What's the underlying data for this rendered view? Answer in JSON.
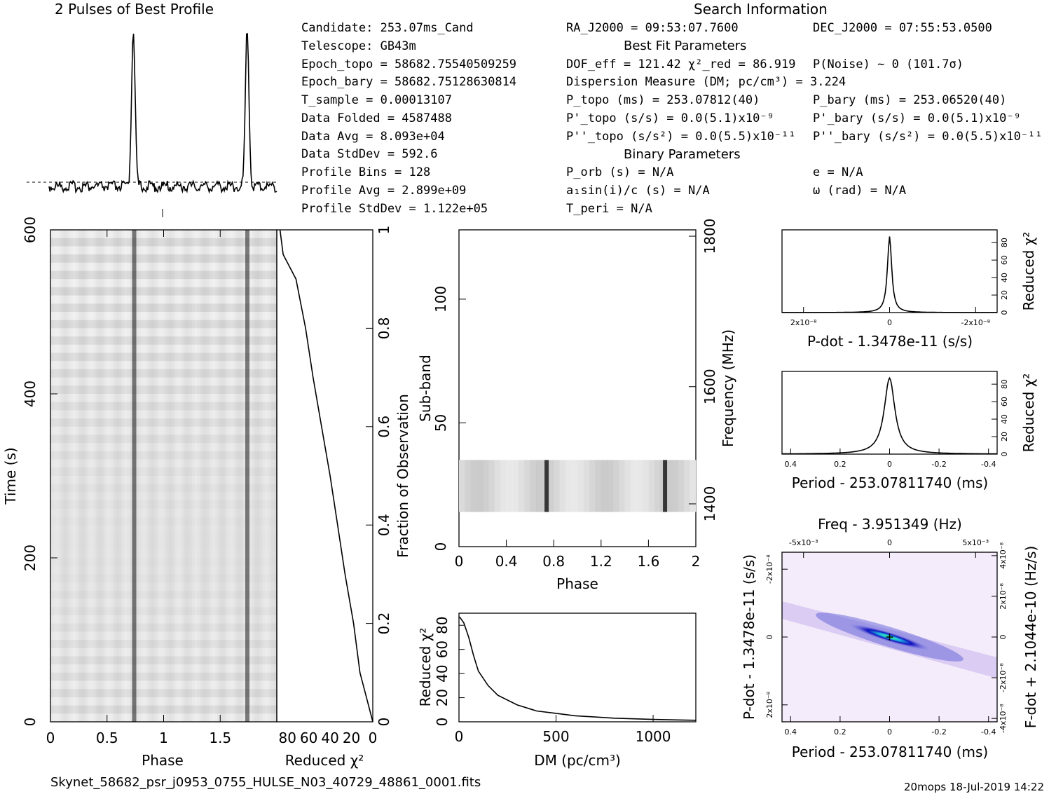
{
  "header": {
    "profile_title": "2 Pulses of Best Profile",
    "search_title": "Search Information",
    "best_fit_title": "Best Fit Parameters",
    "binary_title": "Binary Parameters"
  },
  "info_left": [
    "Candidate:  253.07ms_Cand",
    "Telescope:  GB43m",
    "Epoch_topo = 58682.75540509259",
    "Epoch_bary = 58682.75128630814",
    "T_sample     =  0.00013107",
    "Data Folded  =  4587488",
    "Data Avg     =  8.093e+04",
    "Data StdDev  =  592.6",
    "Profile Bins =  128",
    "Profile Avg  =  2.899e+09",
    "Profile StdDev =  1.122e+05"
  ],
  "info_mid": [
    "RA_J2000 = 09:53:07.7600",
    "DOF_eff = 121.42  χ²_red = 86.919",
    "Dispersion Measure (DM; pc/cm³) = 3.224",
    "P_topo (ms) =  253.07812(40)",
    "P'_topo (s/s) = 0.0(5.1)x10⁻⁹",
    "P''_topo (s/s²) = 0.0(5.5)x10⁻¹¹",
    "P_orb (s) = N/A",
    "a₁sin(i)/c (s) = N/A",
    "T_peri = N/A"
  ],
  "info_right": [
    "DEC_J2000 = 07:55:53.0500",
    "P(Noise) ~ 0   (101.7σ)",
    "P_bary (ms) =  253.06520(40)",
    "P'_bary (s/s) = 0.0(5.1)x10⁻⁹",
    "P''_bary (s/s²) = 0.0(5.5)x10⁻¹¹",
    "e = N/A",
    "ω (rad) = N/A"
  ],
  "footer": {
    "filename": "Skynet_58682_psr_j0953_0755_HULSE_N03_40729_48861_0001.fits",
    "stamp": "20mops  18-Jul-2019 14:22"
  },
  "colors": {
    "line": "#000000",
    "pulse_dark": "#1a1a1a",
    "dm_cmap_low": "#ffffff",
    "dm_cmap_mid": "#1f1fd0",
    "dm_cmap_peak": "#30e0a0"
  },
  "chart_data": [
    {
      "id": "profile",
      "type": "line",
      "title": "2 Pulses of Best Profile",
      "xlabel": "",
      "ylabel": "",
      "x_range": [
        0,
        2
      ],
      "pulse_phases": [
        0.74,
        1.74
      ],
      "pulse_peak_relative": 1.0
    },
    {
      "id": "time-phase",
      "type": "heatmap",
      "xlabel": "Phase",
      "ylabel": "Time (s)",
      "xlim": [
        0,
        2
      ],
      "ylim": [
        0,
        600
      ],
      "x_ticks": [
        "0",
        "0.5",
        "1",
        "1.5"
      ],
      "y_ticks": [
        "0",
        "200",
        "400",
        "600"
      ],
      "pulse_phases": [
        0.74,
        1.74
      ]
    },
    {
      "id": "reduced-chi2-vs-fraction",
      "type": "line",
      "xlabel": "Reduced χ²",
      "ylabel": "Fraction of Observation",
      "x_ticks": [
        "80",
        "60",
        "40",
        "20",
        "0"
      ],
      "y_ticks": [
        "0",
        "0.2",
        "0.4",
        "0.6",
        "0.8",
        "1"
      ],
      "points": [
        [
          0,
          0
        ],
        [
          6,
          0.05
        ],
        [
          12,
          0.1
        ],
        [
          18,
          0.2
        ],
        [
          26,
          0.3
        ],
        [
          33,
          0.4
        ],
        [
          40,
          0.5
        ],
        [
          48,
          0.6
        ],
        [
          56,
          0.7
        ],
        [
          63,
          0.8
        ],
        [
          72,
          0.9
        ],
        [
          84,
          0.95
        ],
        [
          87,
          1.0
        ]
      ]
    },
    {
      "id": "subband-phase",
      "type": "heatmap",
      "xlabel": "Phase",
      "ylabel": "Sub-band",
      "y2label": "Frequency (MHz)",
      "xlim": [
        0,
        2
      ],
      "ylim": [
        0,
        128
      ],
      "x_ticks": [
        "0",
        "0.4",
        "0.8",
        "1.2",
        "1.6",
        "2"
      ],
      "y_ticks": [
        "0",
        "50",
        "100"
      ],
      "y2_ticks": [
        "1400",
        "1600",
        "1800"
      ],
      "filled_subbands": [
        14,
        35
      ],
      "pulse_phases": [
        0.74,
        1.74
      ]
    },
    {
      "id": "dm-chi2",
      "type": "line",
      "xlabel": "DM (pc/cm³)",
      "ylabel": "Reduced χ²",
      "xlim": [
        0,
        1220
      ],
      "ylim": [
        0,
        90
      ],
      "x_ticks": [
        "0",
        "500",
        "1000"
      ],
      "y_ticks": [
        "0",
        "20",
        "40",
        "60",
        "80"
      ],
      "points": [
        [
          3,
          87
        ],
        [
          25,
          82
        ],
        [
          50,
          70
        ],
        [
          75,
          55
        ],
        [
          100,
          42
        ],
        [
          150,
          30
        ],
        [
          200,
          22
        ],
        [
          300,
          14
        ],
        [
          400,
          9
        ],
        [
          500,
          7
        ],
        [
          600,
          5
        ],
        [
          700,
          4
        ],
        [
          800,
          3
        ],
        [
          900,
          2.5
        ],
        [
          1000,
          2
        ],
        [
          1100,
          1.6
        ],
        [
          1220,
          1.3
        ]
      ]
    },
    {
      "id": "pdot-chi2",
      "type": "line",
      "xlabel": "P-dot - 1.3478e-11 (s/s)",
      "ylabel": "Reduced χ²",
      "x_ticks": [
        "2x10⁻⁸",
        "0",
        "-2x10⁻⁸"
      ],
      "y_ticks": [
        "0",
        "20",
        "40",
        "60",
        "80"
      ],
      "peak": 87
    },
    {
      "id": "period-chi2",
      "type": "line",
      "xlabel": "Period - 253.07811740 (ms)",
      "ylabel": "Reduced χ²",
      "x_ticks": [
        "0.4",
        "0.2",
        "0",
        "-0.2",
        "-0.4"
      ],
      "y_ticks": [
        "0",
        "20",
        "40",
        "60",
        "80"
      ],
      "peak": 87
    },
    {
      "id": "p-pdot-plane",
      "type": "heatmap",
      "title": "Freq - 3.951349 (Hz)",
      "xlabel": "Period - 253.07811740 (ms)",
      "ylabel": "P-dot - 1.3478e-11 (s/s)",
      "y2label": "F-dot + 2.1044e-10 (Hz/s)",
      "x_ticks": [
        "0.4",
        "0.2",
        "0",
        "-0.2",
        "-0.4"
      ],
      "x2_ticks": [
        "-5x10⁻³",
        "0",
        "5x10⁻³"
      ],
      "y_ticks": [
        "2x10⁻⁸",
        "0",
        "-2x10⁻⁸"
      ],
      "y2_ticks": [
        "-4x10⁻⁸",
        "-2x10⁻⁸",
        "0",
        "2x10⁻⁸",
        "4x10⁻⁸"
      ]
    }
  ]
}
